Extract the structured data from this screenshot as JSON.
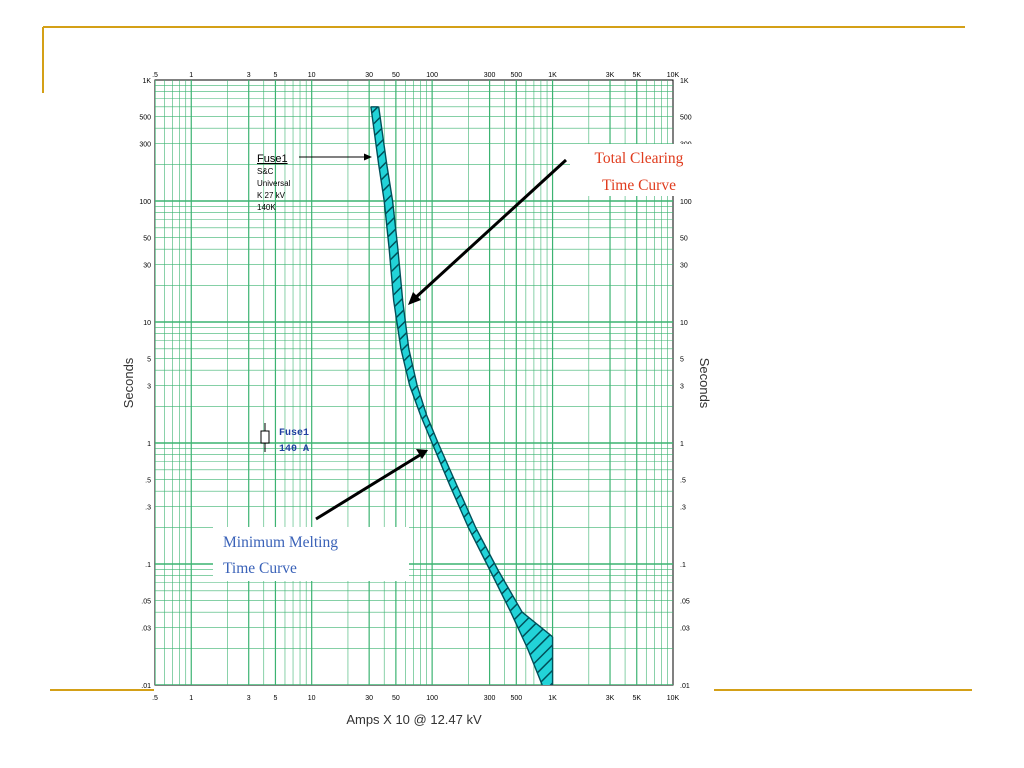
{
  "colors": {
    "slide_accent": "#D4A017",
    "grid": "#3CB371",
    "band_fill": "#22D3D8",
    "band_stroke": "#00505A",
    "total_clearing_text": "#E03C1E",
    "min_melting_text": "#3A62B8",
    "fuse_label_text": "#1F3FA0"
  },
  "chart_data": {
    "type": "line",
    "xscale": "log",
    "yscale": "log",
    "xlim": [
      0.5,
      10000
    ],
    "ylim": [
      0.01,
      1000
    ],
    "grid": true,
    "xlabel": "Amps X 10 @ 12.47 kV",
    "ylabel": "Seconds",
    "ylabel_right": "Seconds",
    "x_tick_labels": [
      {
        "v": 0.5,
        "t": ".5"
      },
      {
        "v": 1,
        "t": "1"
      },
      {
        "v": 3,
        "t": "3"
      },
      {
        "v": 5,
        "t": "5"
      },
      {
        "v": 10,
        "t": "10"
      },
      {
        "v": 30,
        "t": "30"
      },
      {
        "v": 50,
        "t": "50"
      },
      {
        "v": 100,
        "t": "100"
      },
      {
        "v": 300,
        "t": "300"
      },
      {
        "v": 500,
        "t": "500"
      },
      {
        "v": 1000,
        "t": "1K"
      },
      {
        "v": 3000,
        "t": "3K"
      },
      {
        "v": 5000,
        "t": "5K"
      },
      {
        "v": 10000,
        "t": "10K"
      }
    ],
    "y_tick_labels": [
      {
        "v": 1000,
        "t": "1K"
      },
      {
        "v": 500,
        "t": "500"
      },
      {
        "v": 300,
        "t": "300"
      },
      {
        "v": 100,
        "t": "100"
      },
      {
        "v": 50,
        "t": "50"
      },
      {
        "v": 30,
        "t": "30"
      },
      {
        "v": 10,
        "t": "10"
      },
      {
        "v": 5,
        "t": "5"
      },
      {
        "v": 3,
        "t": "3"
      },
      {
        "v": 1,
        "t": "1"
      },
      {
        "v": 0.5,
        "t": ".5"
      },
      {
        "v": 0.3,
        "t": ".3"
      },
      {
        "v": 0.1,
        "t": ".1"
      },
      {
        "v": 0.05,
        "t": ".05"
      },
      {
        "v": 0.03,
        "t": ".03"
      },
      {
        "v": 0.01,
        "t": ".01"
      }
    ],
    "series": [
      {
        "name": "Minimum Melting Time Curve",
        "points": [
          [
            31,
            600
          ],
          [
            36,
            200
          ],
          [
            40,
            100
          ],
          [
            44,
            40
          ],
          [
            48,
            15
          ],
          [
            55,
            6
          ],
          [
            65,
            3
          ],
          [
            80,
            1.7
          ],
          [
            100,
            1
          ],
          [
            140,
            0.45
          ],
          [
            200,
            0.2
          ],
          [
            300,
            0.09
          ],
          [
            450,
            0.04
          ],
          [
            620,
            0.02
          ],
          [
            820,
            0.01
          ]
        ]
      },
      {
        "name": "Total Clearing Time Curve",
        "points": [
          [
            36,
            600
          ],
          [
            42,
            200
          ],
          [
            47,
            100
          ],
          [
            52,
            40
          ],
          [
            57,
            15
          ],
          [
            64,
            6
          ],
          [
            75,
            3
          ],
          [
            90,
            1.7
          ],
          [
            112,
            1
          ],
          [
            160,
            0.45
          ],
          [
            230,
            0.2
          ],
          [
            350,
            0.09
          ],
          [
            560,
            0.04
          ],
          [
            1000,
            0.025
          ]
        ]
      }
    ],
    "annotations": {
      "fuse_tag": {
        "name": "Fuse1",
        "lines": [
          "S&C",
          "Universal",
          "K 27 kV",
          "140K"
        ]
      },
      "fuse_legend": [
        "Fuse1",
        "140 A"
      ],
      "callout_total": [
        "Total Clearing",
        "Time Curve"
      ],
      "callout_min": [
        "Minimum Melting",
        "Time Curve"
      ]
    }
  }
}
